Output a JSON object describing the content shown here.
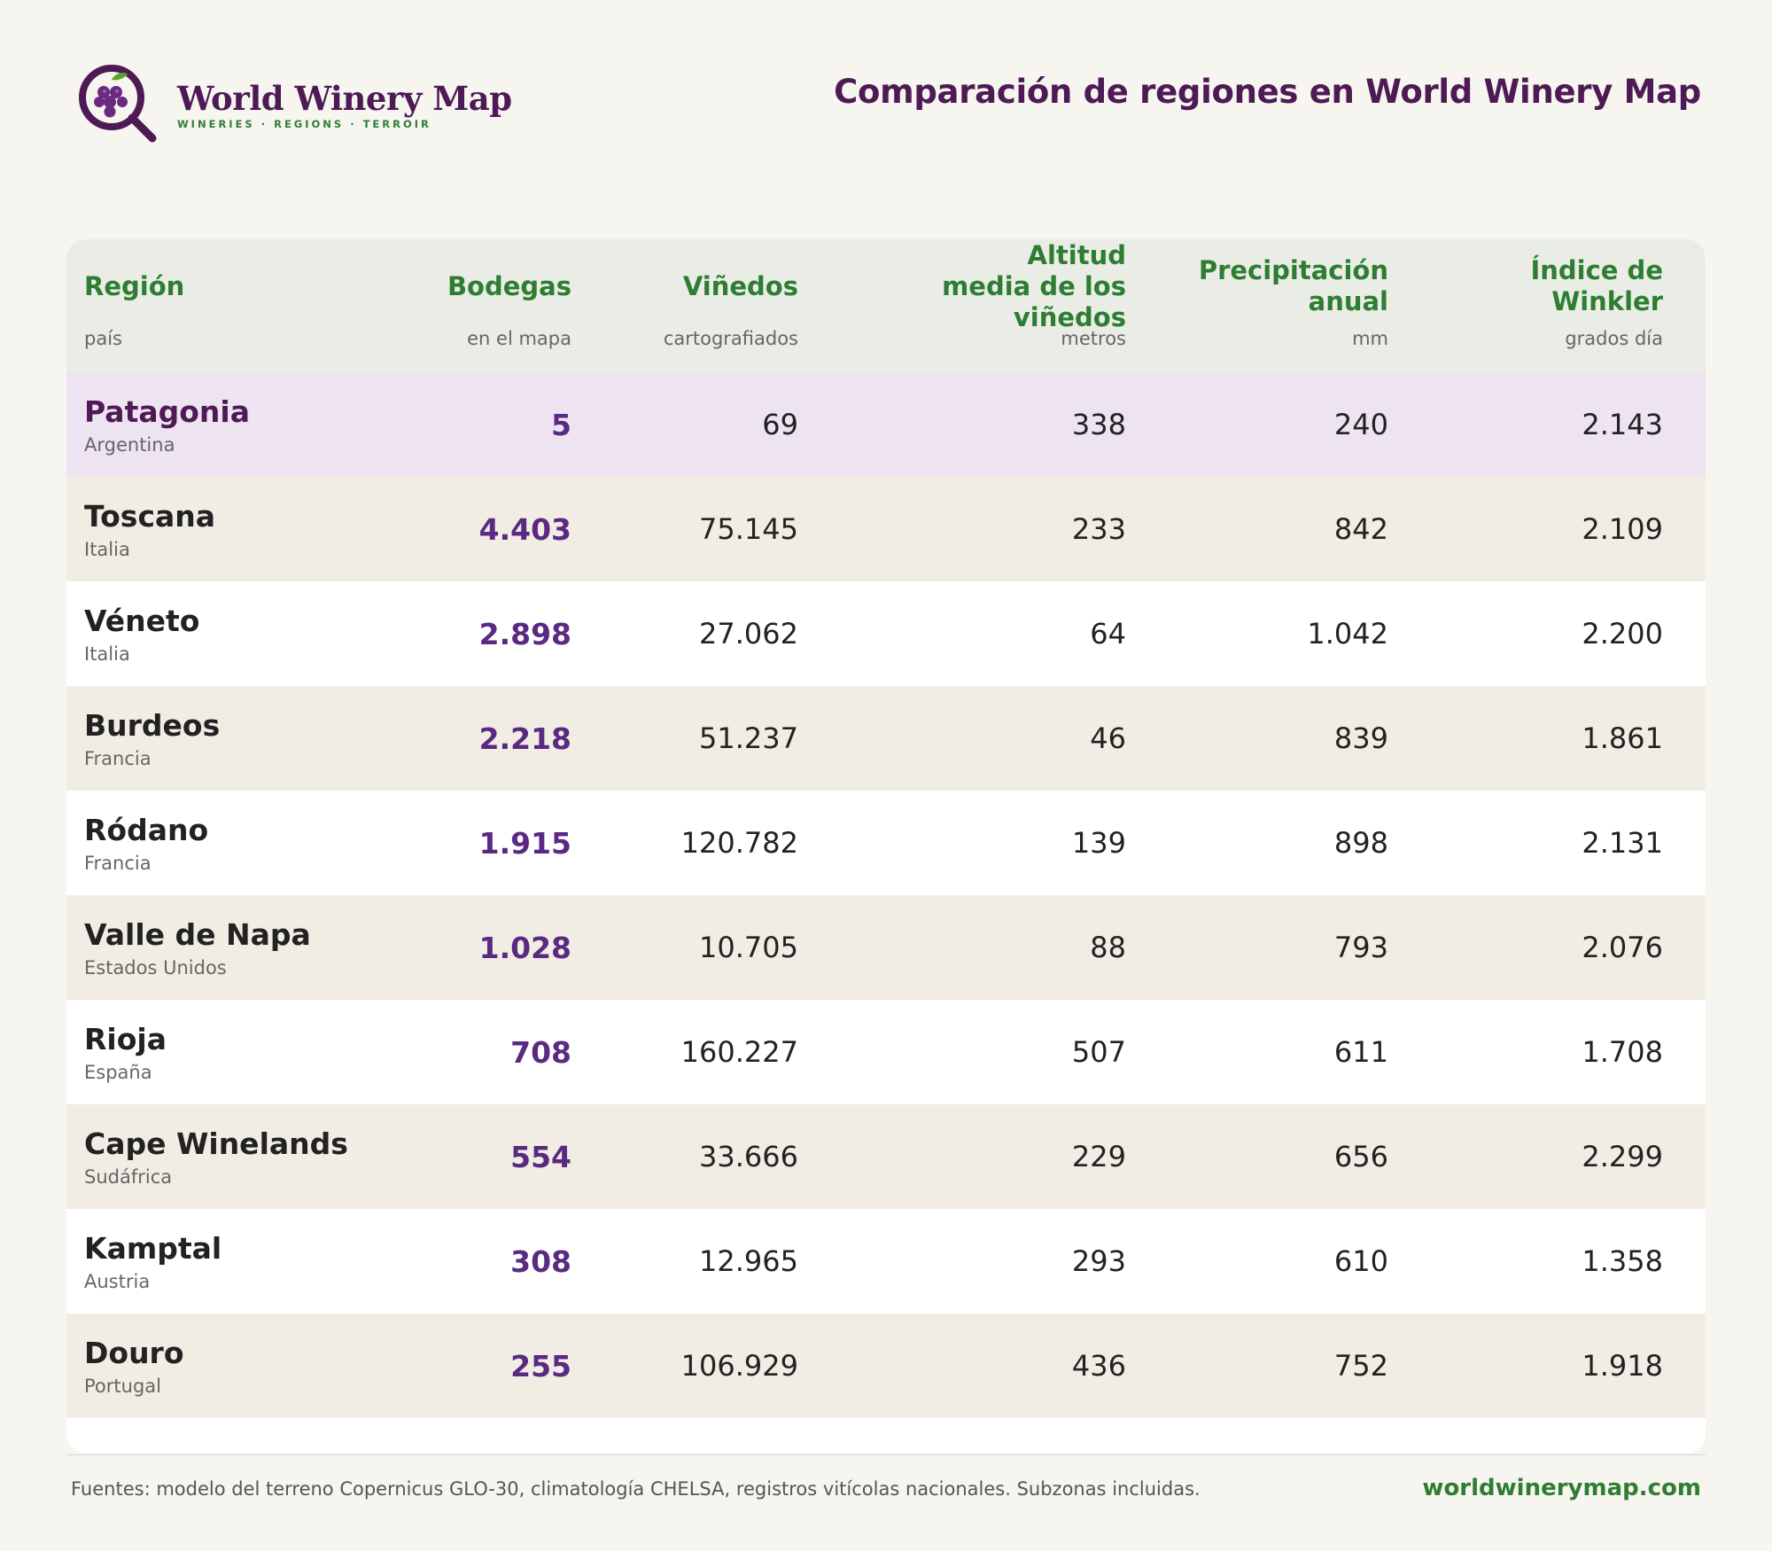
{
  "brand": {
    "name": "World Winery Map",
    "tagline": "WINERIES · REGIONS · TERROIR",
    "logo_icon": "grape-magnifier-icon",
    "colors": {
      "primary": "#4e1a55",
      "accent": "#2e7d32"
    }
  },
  "title": "Comparación de regiones en World Winery Map",
  "table": {
    "columns": [
      {
        "label": "Región",
        "sub": "país"
      },
      {
        "label": "Bodegas",
        "sub": "en el mapa"
      },
      {
        "label": "Viñedos",
        "sub": "cartografiados"
      },
      {
        "label": "Altitud media de los viñedos",
        "sub": "metros"
      },
      {
        "label": "Precipitación anual",
        "sub": "mm"
      },
      {
        "label": "Índice de Winkler",
        "sub": "grados día"
      }
    ],
    "rows": [
      {
        "region": "Patagonia",
        "country": "Argentina",
        "wineries": "5",
        "vineyards": "69",
        "altitude": "338",
        "precip": "240",
        "winkler": "2.143"
      },
      {
        "region": "Toscana",
        "country": "Italia",
        "wineries": "4.403",
        "vineyards": "75.145",
        "altitude": "233",
        "precip": "842",
        "winkler": "2.109"
      },
      {
        "region": "Véneto",
        "country": "Italia",
        "wineries": "2.898",
        "vineyards": "27.062",
        "altitude": "64",
        "precip": "1.042",
        "winkler": "2.200"
      },
      {
        "region": "Burdeos",
        "country": "Francia",
        "wineries": "2.218",
        "vineyards": "51.237",
        "altitude": "46",
        "precip": "839",
        "winkler": "1.861"
      },
      {
        "region": "Ródano",
        "country": "Francia",
        "wineries": "1.915",
        "vineyards": "120.782",
        "altitude": "139",
        "precip": "898",
        "winkler": "2.131"
      },
      {
        "region": "Valle de Napa",
        "country": "Estados Unidos",
        "wineries": "1.028",
        "vineyards": "10.705",
        "altitude": "88",
        "precip": "793",
        "winkler": "2.076"
      },
      {
        "region": "Rioja",
        "country": "España",
        "wineries": "708",
        "vineyards": "160.227",
        "altitude": "507",
        "precip": "611",
        "winkler": "1.708"
      },
      {
        "region": "Cape Winelands",
        "country": "Sudáfrica",
        "wineries": "554",
        "vineyards": "33.666",
        "altitude": "229",
        "precip": "656",
        "winkler": "2.299"
      },
      {
        "region": "Kamptal",
        "country": "Austria",
        "wineries": "308",
        "vineyards": "12.965",
        "altitude": "293",
        "precip": "610",
        "winkler": "1.358"
      },
      {
        "region": "Douro",
        "country": "Portugal",
        "wineries": "255",
        "vineyards": "106.929",
        "altitude": "436",
        "precip": "752",
        "winkler": "1.918"
      }
    ]
  },
  "footer": {
    "source": "Fuentes: modelo del terreno Copernicus GLO-30, climatología CHELSA, registros vitícolas nacionales. Subzonas incluidas.",
    "site": "worldwinerymap.com"
  }
}
